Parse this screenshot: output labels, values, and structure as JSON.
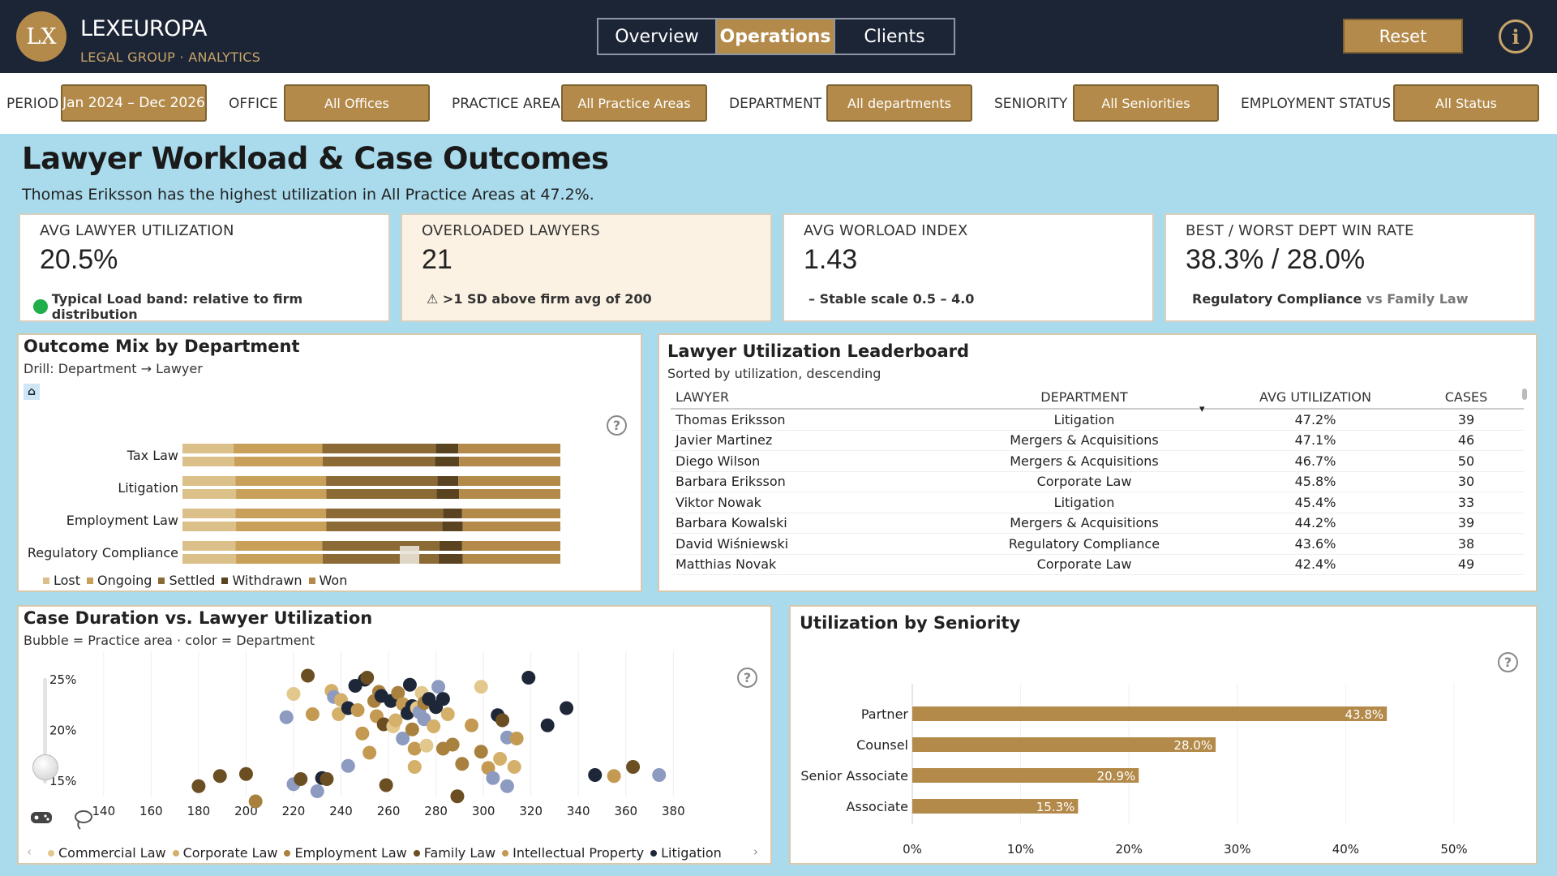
{
  "header": {
    "logo_text": "LX",
    "brand": "LEXEUROPA",
    "brand_sub": "LEGAL GROUP · ANALYTICS",
    "tabs": [
      {
        "label": "Overview",
        "active": false
      },
      {
        "label": "Operations",
        "active": true
      },
      {
        "label": "Clients",
        "active": false
      }
    ],
    "reset_label": "Reset",
    "info_glyph": "i"
  },
  "filters": {
    "period": {
      "label": "PERIOD",
      "value": "Jan 2024 – Dec 2026"
    },
    "office": {
      "label": "OFFICE",
      "value": "All Offices"
    },
    "practice_area": {
      "label": "PRACTICE AREA",
      "value": "All Practice Areas"
    },
    "department": {
      "label": "DEPARTMENT",
      "value": "All departments"
    },
    "seniority": {
      "label": "SENIORITY",
      "value": "All Seniorities"
    },
    "employment_status": {
      "label": "EMPLOYMENT STATUS",
      "value": "All Status"
    }
  },
  "page": {
    "title": "Lawyer Workload & Case Outcomes",
    "subtitle": "Thomas Eriksson has the highest utilization in All Practice Areas at 47.2%."
  },
  "kpis": [
    {
      "label": "AVG LAWYER UTILIZATION",
      "value": "20.5%",
      "note": "Typical Load band: relative to firm distribution",
      "indicator_color": "#1fae4a"
    },
    {
      "label": "OVERLOADED LAWYERS",
      "value": "21",
      "note": "⚠ >1 SD above firm avg of 200"
    },
    {
      "label": "AVG WORLOAD INDEX",
      "value": "1.43",
      "note": "– Stable scale 0.5 – 4.0"
    },
    {
      "label": "BEST / WORST DEPT WIN RATE",
      "value": "38.3% / 28.0%",
      "note_best": "Regulatory Compliance",
      "note_vs": "vs Family Law"
    }
  ],
  "outcome_mix": {
    "title": "Outcome Mix by Department",
    "subtitle": "Drill: Department → Lawyer",
    "home_glyph": "⌂",
    "help_glyph": "?",
    "chart_data": {
      "type": "bar",
      "stacked": "100%",
      "orientation": "horizontal",
      "categories": [
        "Tax Law",
        "Litigation",
        "Employment Law",
        "Regulatory Compliance"
      ],
      "visible_tick_labels": [
        "Tax Law",
        "Litigation",
        "Employment Law",
        "Regulatory Compliance"
      ],
      "series": [
        {
          "name": "Lost",
          "color": "#dcc08a",
          "values": [
            13.5,
            14,
            14,
            14
          ]
        },
        {
          "name": "Ongoing",
          "color": "#c9a05a",
          "values": [
            23.5,
            24,
            24,
            23
          ]
        },
        {
          "name": "Settled",
          "color": "#8c6a35",
          "values": [
            30,
            29.5,
            31,
            31
          ]
        },
        {
          "name": "Withdrawn",
          "color": "#5a4320",
          "values": [
            6,
            5.5,
            5,
            6
          ]
        },
        {
          "name": "Won",
          "color": "#b38a4a",
          "values": [
            27,
            27,
            26,
            26
          ]
        }
      ],
      "legend_position": "bottom"
    }
  },
  "leaderboard": {
    "title": "Lawyer Utilization Leaderboard",
    "subtitle": "Sorted by utilization, descending",
    "columns": [
      "LAWYER",
      "DEPARTMENT",
      "AVG UTILIZATION",
      "CASES"
    ],
    "sort_glyph": "▾",
    "rows": [
      {
        "lawyer": "Thomas Eriksson",
        "department": "Litigation",
        "util": "47.2%",
        "cases": "39"
      },
      {
        "lawyer": "Javier Martinez",
        "department": "Mergers & Acquisitions",
        "util": "47.1%",
        "cases": "46"
      },
      {
        "lawyer": "Diego Wilson",
        "department": "Mergers & Acquisitions",
        "util": "46.7%",
        "cases": "50"
      },
      {
        "lawyer": "Barbara Eriksson",
        "department": "Corporate Law",
        "util": "45.8%",
        "cases": "30"
      },
      {
        "lawyer": "Viktor Nowak",
        "department": "Litigation",
        "util": "45.4%",
        "cases": "33"
      },
      {
        "lawyer": "Barbara Kowalski",
        "department": "Mergers & Acquisitions",
        "util": "44.2%",
        "cases": "39"
      },
      {
        "lawyer": "David Wiśniewski",
        "department": "Regulatory Compliance",
        "util": "43.6%",
        "cases": "38"
      },
      {
        "lawyer": "Matthias Novak",
        "department": "Corporate Law",
        "util": "42.4%",
        "cases": "49"
      }
    ]
  },
  "scatter": {
    "title": "Case Duration vs. Lawyer Utilization",
    "subtitle": "Bubble = Practice area · color = Department",
    "help_glyph": "?",
    "chart_data": {
      "type": "scatter",
      "xlim": [
        124,
        398
      ],
      "ylim": [
        13,
        27
      ],
      "x_ticks": [
        "140",
        "160",
        "180",
        "200",
        "220",
        "240",
        "260",
        "280",
        "300",
        "320",
        "340",
        "360",
        "380"
      ],
      "y_ticks": [
        "25%",
        "20%",
        "15%"
      ],
      "legend_position": "bottom",
      "series": [
        {
          "name": "Commercial Law",
          "color": "#e3c88e"
        },
        {
          "name": "Corporate Law",
          "color": "#d4b06a"
        },
        {
          "name": "Employment Law",
          "color": "#a8813e"
        },
        {
          "name": "Family Law",
          "color": "#6b4e22"
        },
        {
          "name": "Intellectual Property",
          "color": "#c49a52"
        },
        {
          "name": "Litigation",
          "color": "#1e2738"
        },
        {
          "name": "",
          "color": "#8d9bc0"
        }
      ],
      "points": [
        [
          180,
          14.5,
          3
        ],
        [
          189,
          15.5,
          3
        ],
        [
          200,
          15.7,
          3
        ],
        [
          204,
          13.0,
          2
        ],
        [
          217,
          21.3,
          6
        ],
        [
          220,
          23.6,
          0
        ],
        [
          226,
          25.4,
          3
        ],
        [
          220,
          14.7,
          6
        ],
        [
          223,
          15.2,
          3
        ],
        [
          228,
          21.6,
          4
        ],
        [
          230,
          14.0,
          6
        ],
        [
          232,
          15.3,
          5
        ],
        [
          234,
          15.2,
          3
        ],
        [
          236,
          23.9,
          1
        ],
        [
          237,
          23.3,
          6
        ],
        [
          239,
          21.6,
          1
        ],
        [
          240,
          23.0,
          1
        ],
        [
          243,
          22.2,
          5
        ],
        [
          243,
          16.5,
          6
        ],
        [
          246,
          24.4,
          5
        ],
        [
          247,
          22.0,
          4
        ],
        [
          249,
          19.7,
          4
        ],
        [
          250,
          25.0,
          5
        ],
        [
          251,
          25.2,
          3
        ],
        [
          252,
          17.8,
          4
        ],
        [
          254,
          22.9,
          2
        ],
        [
          255,
          21.4,
          4
        ],
        [
          256,
          23.8,
          2
        ],
        [
          257,
          23.4,
          5
        ],
        [
          258,
          20.6,
          3
        ],
        [
          259,
          14.6,
          3
        ],
        [
          261,
          22.9,
          5
        ],
        [
          262,
          20.4,
          0
        ],
        [
          263,
          21.0,
          1
        ],
        [
          264,
          23.7,
          2
        ],
        [
          266,
          22.6,
          4
        ],
        [
          266,
          19.2,
          6
        ],
        [
          268,
          21.7,
          5
        ],
        [
          269,
          24.5,
          5
        ],
        [
          270,
          22.4,
          5
        ],
        [
          270,
          20.1,
          2
        ],
        [
          271,
          18.2,
          4
        ],
        [
          271,
          16.4,
          1
        ],
        [
          272,
          22.2,
          0
        ],
        [
          273,
          21.8,
          6
        ],
        [
          274,
          23.7,
          0
        ],
        [
          275,
          22.7,
          2
        ],
        [
          275,
          21.1,
          6
        ],
        [
          276,
          18.5,
          0
        ],
        [
          277,
          23.1,
          5
        ],
        [
          279,
          20.4,
          1
        ],
        [
          280,
          22.3,
          5
        ],
        [
          281,
          24.3,
          6
        ],
        [
          283,
          23.1,
          5
        ],
        [
          283,
          18.2,
          2
        ],
        [
          285,
          21.6,
          1
        ],
        [
          287,
          18.6,
          2
        ],
        [
          289,
          13.5,
          3
        ],
        [
          291,
          16.7,
          2
        ],
        [
          295,
          20.5,
          4
        ],
        [
          299,
          17.9,
          2
        ],
        [
          299,
          24.3,
          0
        ],
        [
          302,
          16.3,
          4
        ],
        [
          304,
          15.3,
          6
        ],
        [
          306,
          21.5,
          5
        ],
        [
          307,
          17.2,
          1
        ],
        [
          308,
          21.0,
          3
        ],
        [
          310,
          14.5,
          6
        ],
        [
          310,
          19.3,
          6
        ],
        [
          313,
          16.4,
          1
        ],
        [
          314,
          19.2,
          4
        ],
        [
          319,
          25.2,
          5
        ],
        [
          327,
          20.5,
          5
        ],
        [
          335,
          22.2,
          5
        ],
        [
          347,
          15.6,
          5
        ],
        [
          355,
          15.5,
          4
        ],
        [
          363,
          16.4,
          3
        ],
        [
          374,
          15.6,
          6
        ]
      ]
    }
  },
  "seniority": {
    "title": "Utilization by Seniority",
    "help_glyph": "?",
    "chart_data": {
      "type": "bar",
      "orientation": "horizontal",
      "categories": [
        "Partner",
        "Counsel",
        "Senior Associate",
        "Associate"
      ],
      "values": [
        43.8,
        28.0,
        20.9,
        15.3
      ],
      "value_labels": [
        "43.8%",
        "28.0%",
        "20.9%",
        "15.3%"
      ],
      "xlim": [
        0,
        50
      ],
      "x_ticks": [
        "0%",
        "10%",
        "20%",
        "30%",
        "40%",
        "50%"
      ],
      "bar_color": "#b38a4a"
    }
  }
}
